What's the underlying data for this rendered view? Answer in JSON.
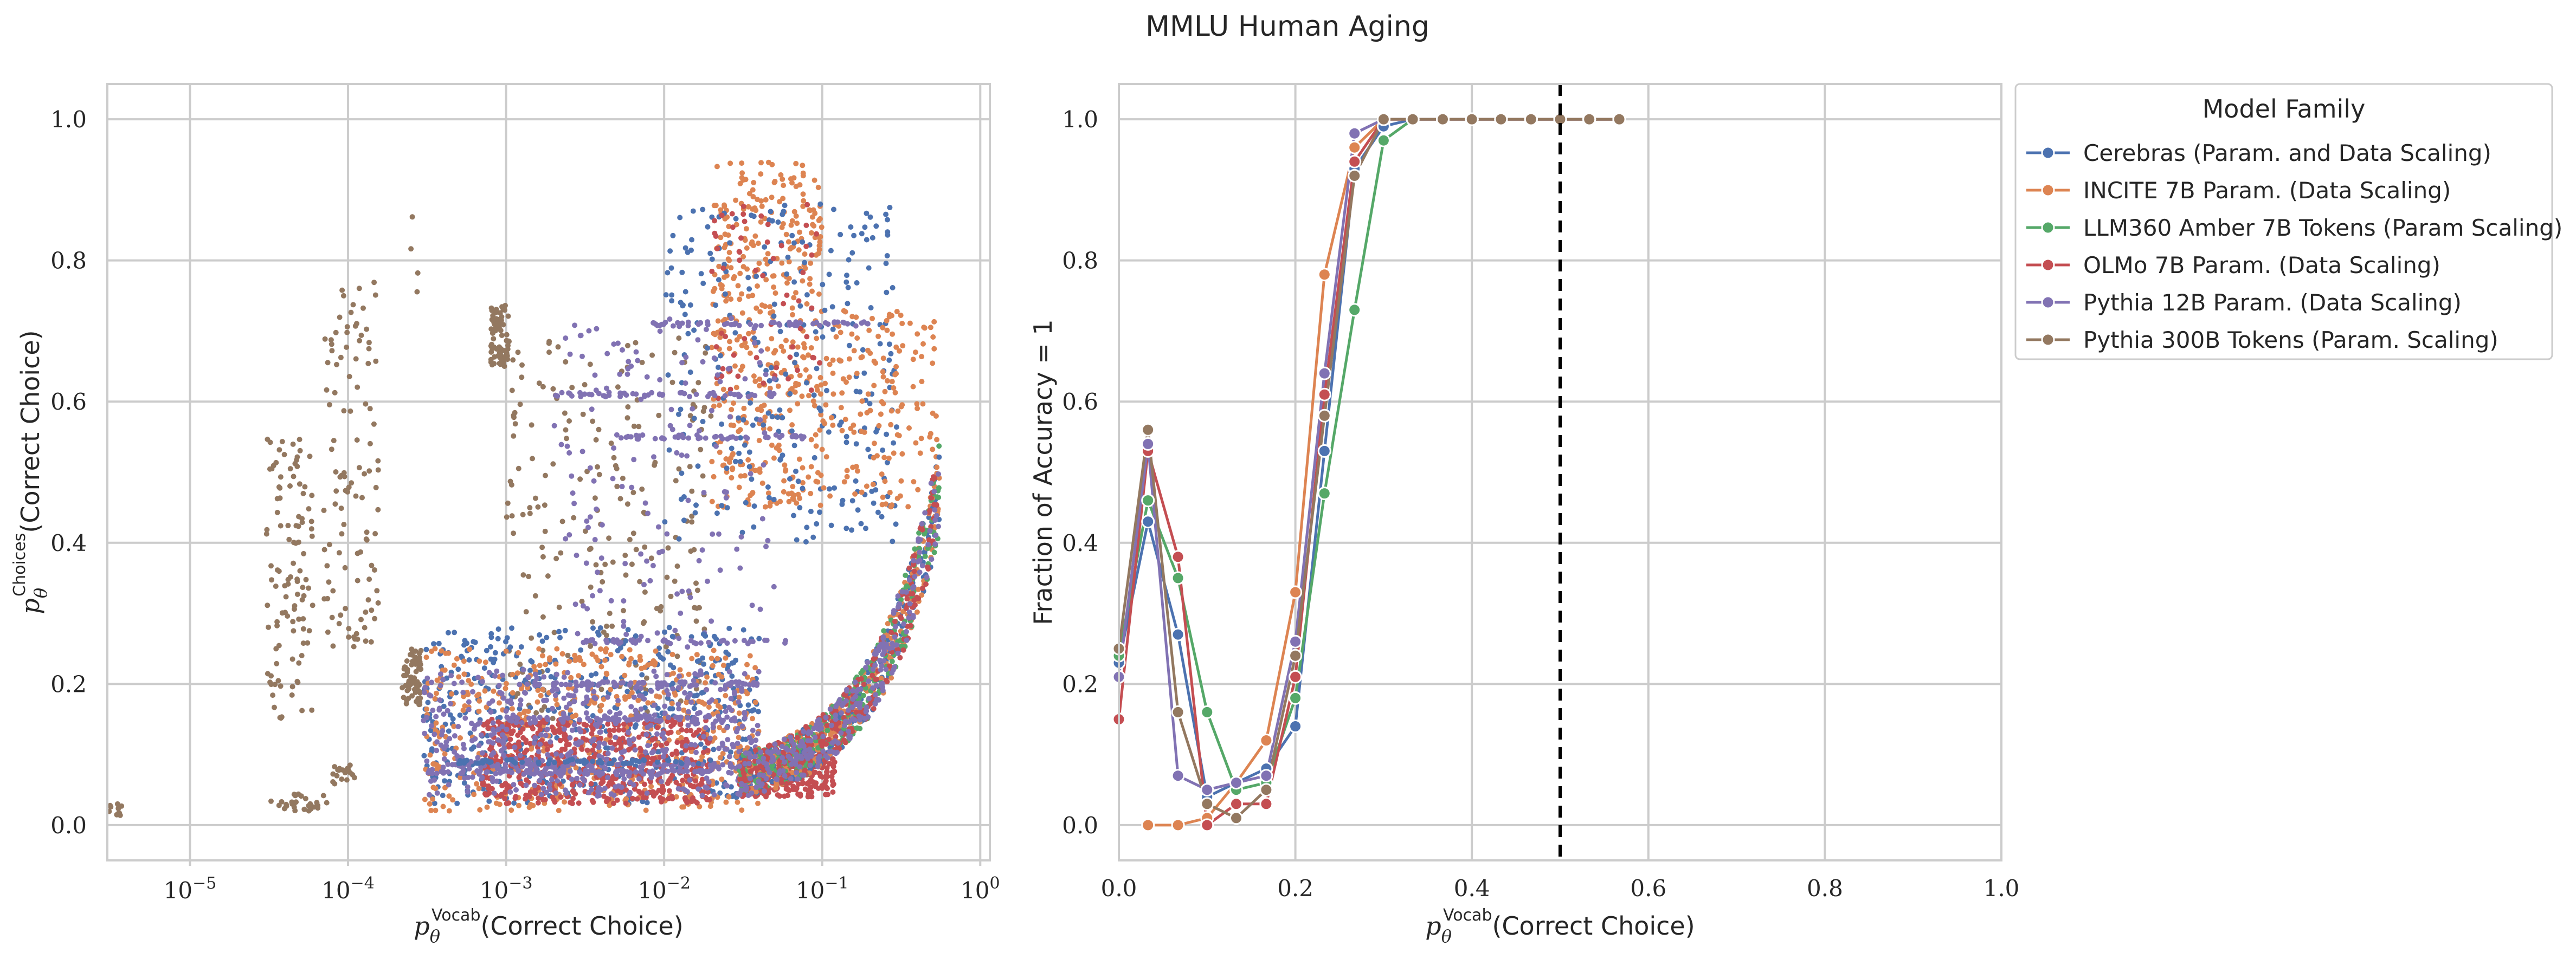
{
  "figure": {
    "title": "MMLU Human Aging"
  },
  "chart_data": [
    {
      "type": "scatter",
      "xlabel_sub": "Vocab",
      "xlabel_suffix": "(Correct Choice)",
      "ylabel_sub": "Choices",
      "ylabel_suffix": "(Correct Choice)",
      "xscale": "log",
      "xlim": [
        3e-06,
        1.15
      ],
      "ylim": [
        -0.05,
        1.05
      ],
      "xticks": [
        1e-05,
        0.0001,
        0.001,
        0.01,
        0.1,
        1
      ],
      "xtick_labels": [
        {
          "base": "10",
          "exp": "−5"
        },
        {
          "base": "10",
          "exp": "−4"
        },
        {
          "base": "10",
          "exp": "−3"
        },
        {
          "base": "10",
          "exp": "−2"
        },
        {
          "base": "10",
          "exp": "−1"
        },
        {
          "base": "10",
          "exp": "0"
        }
      ],
      "yticks": [
        0.0,
        0.2,
        0.4,
        0.6,
        0.8,
        1.0
      ],
      "ytick_labels": [
        "0.0",
        "0.2",
        "0.4",
        "0.6",
        "0.8",
        "1.0"
      ],
      "grid": true,
      "series_colors": [
        "#4c72b0",
        "#dd8452",
        "#55a868",
        "#c44e52",
        "#8172b3",
        "#937860"
      ],
      "clusters": [
        {
          "series": 5,
          "x_range": [
            3e-06,
            3.8e-06
          ],
          "y_range": [
            0.01,
            0.03
          ],
          "n": 12
        },
        {
          "series": 5,
          "x_range": [
            3.2e-05,
            7.5e-05
          ],
          "y_range": [
            0.02,
            0.045
          ],
          "n": 30
        },
        {
          "series": 5,
          "x_range": [
            8e-05,
            0.00011
          ],
          "y_range": [
            0.05,
            0.085
          ],
          "n": 18
        },
        {
          "series": 5,
          "x_range": [
            3e-05,
            6e-05
          ],
          "y_range": [
            0.15,
            0.55
          ],
          "n": 110
        },
        {
          "series": 5,
          "x_range": [
            7e-05,
            0.00016
          ],
          "y_range": [
            0.25,
            0.77
          ],
          "n": 110
        },
        {
          "series": 5,
          "x_range": [
            0.00022,
            0.00029
          ],
          "y_range": [
            0.17,
            0.25
          ],
          "n": 70
        },
        {
          "series": 5,
          "x_range": [
            0.00025,
            0.0003
          ],
          "y_range": [
            0.75,
            0.89
          ],
          "n": 4
        },
        {
          "series": 5,
          "x_range": [
            0.0008,
            0.00105
          ],
          "y_range": [
            0.65,
            0.74
          ],
          "n": 70
        },
        {
          "series": 5,
          "x_range": [
            0.001,
            0.02
          ],
          "y_range": [
            0.15,
            0.7
          ],
          "n": 220
        },
        {
          "series": 1,
          "x_range": [
            0.02,
            0.1
          ],
          "y_range": [
            0.45,
            0.94
          ],
          "n": 420
        },
        {
          "series": 0,
          "x_range": [
            0.01,
            0.3
          ],
          "y_range": [
            0.4,
            0.88
          ],
          "n": 280
        },
        {
          "series": 1,
          "x_range": [
            0.1,
            0.55
          ],
          "y_range": [
            0.45,
            0.73
          ],
          "n": 160
        },
        {
          "series": 3,
          "x_range": [
            0.02,
            0.1
          ],
          "y_range": [
            0.6,
            0.88
          ],
          "n": 60
        },
        {
          "series": 4,
          "x_range": [
            0.002,
            0.05
          ],
          "y_range": [
            0.25,
            0.72
          ],
          "n": 150
        },
        {
          "series": 0,
          "x_range": [
            0.0003,
            0.04
          ],
          "y_range": [
            0.03,
            0.28
          ],
          "n": 500
        },
        {
          "series": 1,
          "x_range": [
            0.0003,
            0.04
          ],
          "y_range": [
            0.02,
            0.25
          ],
          "n": 500
        },
        {
          "series": 3,
          "x_range": [
            0.0007,
            0.02
          ],
          "y_range": [
            0.03,
            0.15
          ],
          "n": 550
        },
        {
          "series": 4,
          "x_range": [
            0.0003,
            0.04
          ],
          "y_range": [
            0.04,
            0.22
          ],
          "n": 500
        },
        {
          "series": 3,
          "x_range": [
            0.03,
            0.12
          ],
          "y_range": [
            0.04,
            0.1
          ],
          "n": 300
        }
      ],
      "streaks": [
        {
          "series": 4,
          "y": 0.71,
          "x_range": [
            0.008,
            0.2
          ]
        },
        {
          "series": 4,
          "y": 0.61,
          "x_range": [
            0.002,
            0.05
          ]
        },
        {
          "series": 4,
          "y": 0.55,
          "x_range": [
            0.005,
            0.08
          ]
        },
        {
          "series": 4,
          "y": 0.26,
          "x_range": [
            0.003,
            0.06
          ]
        },
        {
          "series": 4,
          "y": 0.2,
          "x_range": [
            0.0009,
            0.04
          ]
        },
        {
          "series": 4,
          "y": 0.15,
          "x_range": [
            0.001,
            0.03
          ]
        },
        {
          "series": 4,
          "y": 0.085,
          "x_range": [
            0.0004,
            0.03
          ]
        },
        {
          "series": 4,
          "y": 0.075,
          "x_range": [
            0.0003,
            0.02
          ]
        },
        {
          "series": 0,
          "y": 0.09,
          "x_range": [
            0.0005,
            0.02
          ]
        }
      ],
      "curve_band": {
        "series_order": [
          0,
          1,
          2,
          3,
          4
        ],
        "x_range": [
          0.03,
          0.55
        ],
        "n_per_series": 260
      }
    },
    {
      "type": "line",
      "xlabel_sub": "Vocab",
      "xlabel_suffix": "(Correct Choice)",
      "ylabel": "Fraction of Accuracy = 1",
      "xlim": [
        0.0,
        1.0
      ],
      "ylim": [
        -0.05,
        1.05
      ],
      "xticks": [
        0.0,
        0.2,
        0.4,
        0.6,
        0.8,
        1.0
      ],
      "xtick_labels": [
        "0.0",
        "0.2",
        "0.4",
        "0.6",
        "0.8",
        "1.0"
      ],
      "yticks": [
        0.0,
        0.2,
        0.4,
        0.6,
        0.8,
        1.0
      ],
      "ytick_labels": [
        "0.0",
        "0.2",
        "0.4",
        "0.6",
        "0.8",
        "1.0"
      ],
      "grid": true,
      "vline": {
        "x": 0.5,
        "style": "dashed",
        "color": "#000000"
      },
      "legend": {
        "title": "Model Family",
        "placement": "outside upper-right"
      },
      "series": [
        {
          "name": "Cerebras (Param. and Data Scaling)",
          "color": "#4c72b0",
          "x": [
            0.0,
            0.033,
            0.067,
            0.1,
            0.133,
            0.167,
            0.2,
            0.233,
            0.267,
            0.3,
            0.333,
            0.367,
            0.4,
            0.433,
            0.467,
            0.5,
            0.533,
            0.567
          ],
          "y": [
            0.23,
            0.43,
            0.27,
            0.04,
            0.06,
            0.08,
            0.14,
            0.53,
            0.93,
            0.99,
            1.0,
            1.0,
            1.0,
            1.0,
            1.0,
            1.0,
            1.0,
            1.0
          ]
        },
        {
          "name": "INCITE 7B Param. (Data Scaling)",
          "color": "#dd8452",
          "x": [
            0.033,
            0.067,
            0.1,
            0.133,
            0.167,
            0.2,
            0.233,
            0.267,
            0.3,
            0.333,
            0.367,
            0.4,
            0.433,
            0.467,
            0.5,
            0.533,
            0.567
          ],
          "y": [
            0.0,
            0.0,
            0.01,
            0.06,
            0.12,
            0.33,
            0.78,
            0.96,
            1.0,
            1.0,
            1.0,
            1.0,
            1.0,
            1.0,
            1.0,
            1.0,
            1.0
          ]
        },
        {
          "name": "LLM360 Amber 7B Tokens (Param Scaling)",
          "color": "#55a868",
          "x": [
            0.0,
            0.033,
            0.067,
            0.1,
            0.133,
            0.167,
            0.2,
            0.233,
            0.267,
            0.3,
            0.333,
            0.367,
            0.4,
            0.433,
            0.467,
            0.5,
            0.533,
            0.567
          ],
          "y": [
            0.24,
            0.46,
            0.35,
            0.16,
            0.05,
            0.06,
            0.18,
            0.47,
            0.73,
            0.97,
            1.0,
            1.0,
            1.0,
            1.0,
            1.0,
            1.0,
            1.0,
            1.0
          ]
        },
        {
          "name": "OLMo 7B Param. (Data Scaling)",
          "color": "#c44e52",
          "x": [
            0.0,
            0.033,
            0.067,
            0.1,
            0.133,
            0.167,
            0.2,
            0.233,
            0.267,
            0.3,
            0.333,
            0.367,
            0.4,
            0.433,
            0.467,
            0.5,
            0.533,
            0.567
          ],
          "y": [
            0.15,
            0.53,
            0.38,
            0.0,
            0.03,
            0.03,
            0.21,
            0.61,
            0.94,
            1.0,
            1.0,
            1.0,
            1.0,
            1.0,
            1.0,
            1.0,
            1.0,
            1.0
          ]
        },
        {
          "name": "Pythia 12B Param. (Data Scaling)",
          "color": "#8172b3",
          "x": [
            0.0,
            0.033,
            0.067,
            0.1,
            0.133,
            0.167,
            0.2,
            0.233,
            0.267,
            0.3,
            0.333,
            0.367,
            0.4,
            0.433,
            0.467,
            0.5,
            0.533,
            0.567
          ],
          "y": [
            0.21,
            0.54,
            0.07,
            0.05,
            0.06,
            0.07,
            0.26,
            0.64,
            0.98,
            1.0,
            1.0,
            1.0,
            1.0,
            1.0,
            1.0,
            1.0,
            1.0,
            1.0
          ]
        },
        {
          "name": "Pythia 300B Tokens (Param. Scaling)",
          "color": "#937860",
          "x": [
            0.0,
            0.033,
            0.067,
            0.1,
            0.133,
            0.167,
            0.2,
            0.233,
            0.267,
            0.3,
            0.333,
            0.367,
            0.4,
            0.433,
            0.467,
            0.5,
            0.533,
            0.567
          ],
          "y": [
            0.25,
            0.56,
            0.16,
            0.03,
            0.01,
            0.05,
            0.24,
            0.58,
            0.92,
            1.0,
            1.0,
            1.0,
            1.0,
            1.0,
            1.0,
            1.0,
            1.0,
            1.0
          ]
        }
      ]
    }
  ]
}
